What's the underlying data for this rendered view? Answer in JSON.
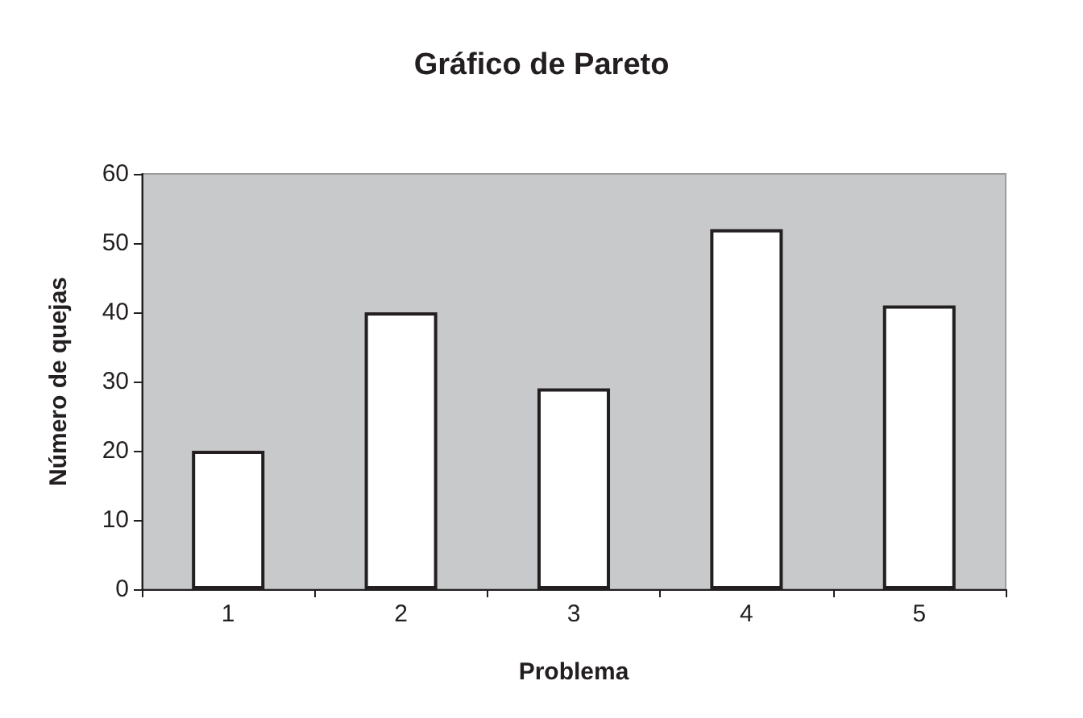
{
  "chart_data": {
    "type": "bar",
    "title": "Gráfico de Pareto",
    "xlabel": "Problema",
    "ylabel": "Número de quejas",
    "categories": [
      "1",
      "2",
      "3",
      "4",
      "5"
    ],
    "values": [
      20,
      40,
      29,
      52,
      41
    ],
    "color": "#ffffff",
    "ylim": [
      0,
      60
    ],
    "yticks": [
      0,
      10,
      20,
      30,
      40,
      50,
      60
    ],
    "grid": false
  }
}
